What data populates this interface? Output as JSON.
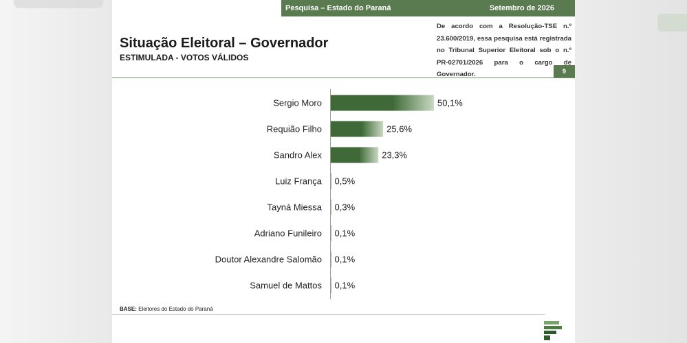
{
  "header": {
    "left": "Pesquisa – Estado do Paraná",
    "right": "Setembro de 2026"
  },
  "title": "Situação Eleitoral – Governador",
  "subtitle": "ESTIMULADA - VOTOS VÁLIDOS",
  "legal_text": "De acordo com a Resolução-TSE n.º 23.600/2019, essa pesquisa está registrada no Tribunal Superior Eleitoral sob o n.º PR-02701/2026 para o cargo de Governador.",
  "page_number": "9",
  "base": {
    "label": "BASE:",
    "text": "Eleitores do Estado do Paraná"
  },
  "colors": {
    "accent": "#5a7a4f",
    "bar_dark": "#3f6a37",
    "bar_light": "#c9d8c3"
  },
  "chart_data": {
    "type": "bar",
    "orientation": "horizontal",
    "categories": [
      "Sergio Moro",
      "Requião Filho",
      "Sandro Alex",
      "Luiz França",
      "Tayná Miessa",
      "Adriano Funileiro",
      "Doutor Alexandre Salomão",
      "Samuel de Mattos"
    ],
    "values": [
      50.1,
      25.6,
      23.3,
      0.5,
      0.3,
      0.1,
      0.1,
      0.1
    ],
    "value_labels": [
      "50,1%",
      "25,6%",
      "23,3%",
      "0,5%",
      "0,3%",
      "0,1%",
      "0,1%",
      "0,1%"
    ],
    "xlim": [
      0,
      50.1
    ],
    "grid": false,
    "legend": false
  }
}
